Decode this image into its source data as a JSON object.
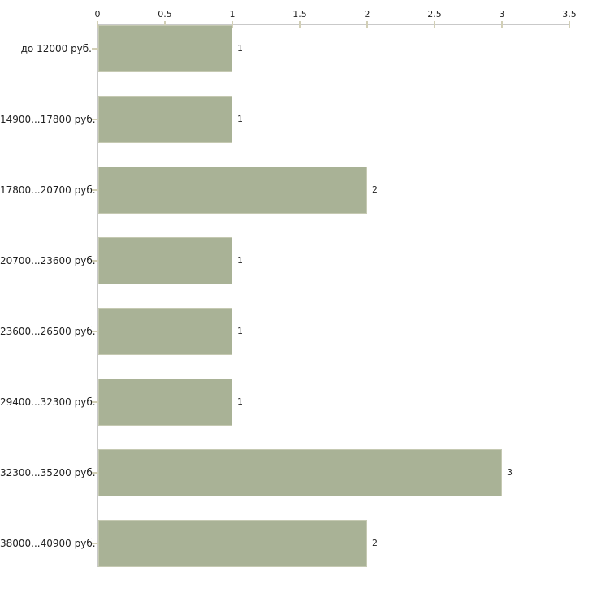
{
  "chart_data": {
    "type": "bar",
    "orientation": "horizontal",
    "categories": [
      "до 12000 руб.",
      "14900...17800 руб.",
      "17800...20700 руб.",
      "20700...23600 руб.",
      "23600...26500 руб.",
      "29400...32300 руб.",
      "32300...35200 руб.",
      "38000...40900 руб."
    ],
    "values": [
      1,
      1,
      2,
      1,
      1,
      1,
      3,
      2
    ],
    "value_labels": [
      "1",
      "1",
      "2",
      "1",
      "1",
      "1",
      "3",
      "2"
    ],
    "x_tick_labels": [
      "0",
      "0.5",
      "1",
      "1.5",
      "2",
      "2.5",
      "3",
      "3.5"
    ],
    "xlim": [
      0,
      3.5
    ],
    "grid": false,
    "legend": false,
    "colors": {
      "bar_fill": "#a9b296",
      "bar_border": "#c5c9b2",
      "axis_line": "#c9c9c9",
      "tick_mark": "#d2cfb6",
      "text": "#1f1f1f",
      "background": "#ffffff"
    }
  }
}
